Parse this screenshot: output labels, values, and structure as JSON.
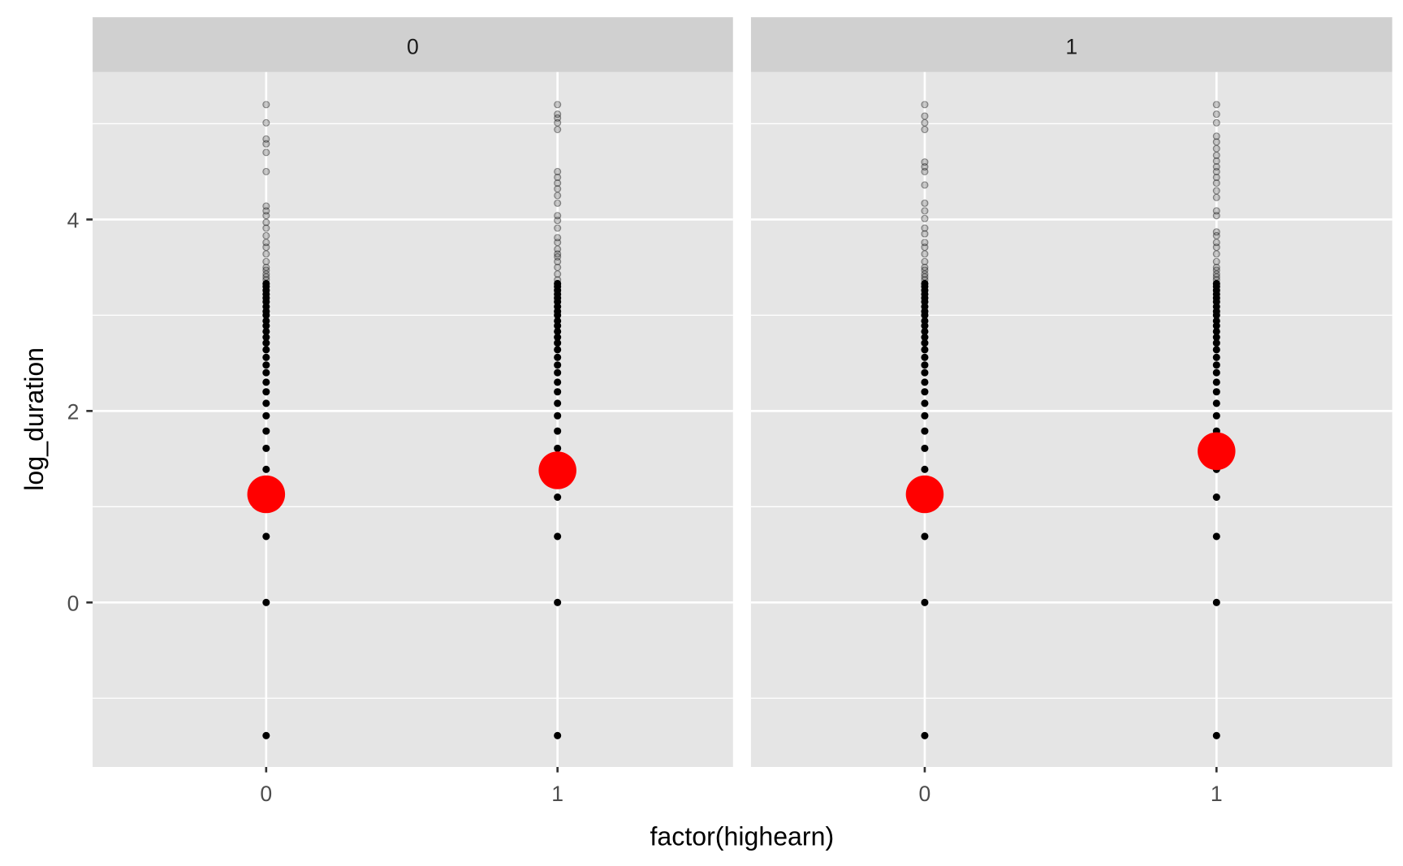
{
  "chart_data": {
    "type": "scatter",
    "title": "",
    "xlabel": "factor(highearn)",
    "ylabel": "log_duration",
    "ylim": [
      -1.75,
      5.45
    ],
    "y_ticks": [
      0,
      2,
      4
    ],
    "y_tick_labels": [
      "0",
      "2",
      "4"
    ],
    "x_categories": [
      "0",
      "1"
    ],
    "grid": true,
    "facets": [
      {
        "strip_label": "0",
        "groups": [
          {
            "x": "0",
            "mean": 1.13,
            "values": [
              -1.39,
              0,
              0.69,
              1.1,
              1.39,
              1.61,
              1.79,
              1.95,
              2.08,
              2.2,
              2.3,
              2.4,
              2.48,
              2.56,
              2.64,
              2.71,
              2.77,
              2.83,
              2.89,
              2.94,
              3.0,
              3.04,
              3.09,
              3.14,
              3.18,
              3.22,
              3.26,
              3.3,
              3.33,
              3.37,
              3.4,
              3.43,
              3.47,
              3.5,
              3.56,
              3.64,
              3.71,
              3.76,
              3.83,
              3.91,
              3.97,
              4.04,
              4.09,
              4.14,
              4.5,
              4.7,
              4.79,
              4.84,
              5.01,
              5.2
            ]
          },
          {
            "x": "1",
            "mean": 1.38,
            "values": [
              -1.39,
              0,
              0.69,
              1.1,
              1.39,
              1.61,
              1.79,
              1.95,
              2.08,
              2.2,
              2.3,
              2.4,
              2.48,
              2.56,
              2.64,
              2.71,
              2.77,
              2.83,
              2.89,
              2.94,
              3.0,
              3.04,
              3.09,
              3.14,
              3.18,
              3.22,
              3.26,
              3.3,
              3.33,
              3.37,
              3.43,
              3.5,
              3.56,
              3.61,
              3.64,
              3.69,
              3.76,
              3.81,
              3.91,
              3.99,
              4.04,
              4.17,
              4.25,
              4.32,
              4.38,
              4.44,
              4.5,
              4.94,
              5.01,
              5.06,
              5.1,
              5.2
            ]
          }
        ]
      },
      {
        "strip_label": "1",
        "groups": [
          {
            "x": "0",
            "mean": 1.13,
            "values": [
              -1.39,
              0,
              0.69,
              1.1,
              1.39,
              1.61,
              1.79,
              1.95,
              2.08,
              2.2,
              2.3,
              2.4,
              2.48,
              2.56,
              2.64,
              2.71,
              2.77,
              2.83,
              2.89,
              2.94,
              3.0,
              3.04,
              3.09,
              3.14,
              3.18,
              3.22,
              3.26,
              3.3,
              3.33,
              3.37,
              3.4,
              3.43,
              3.47,
              3.5,
              3.56,
              3.64,
              3.71,
              3.76,
              3.85,
              3.91,
              4.01,
              4.09,
              4.17,
              4.36,
              4.5,
              4.55,
              4.6,
              4.94,
              5.01,
              5.08,
              5.2
            ]
          },
          {
            "x": "1",
            "mean": 1.58,
            "values": [
              -1.39,
              0,
              0.69,
              1.1,
              1.39,
              1.61,
              1.79,
              1.95,
              2.08,
              2.2,
              2.3,
              2.4,
              2.48,
              2.56,
              2.64,
              2.71,
              2.77,
              2.83,
              2.89,
              2.94,
              3.0,
              3.04,
              3.09,
              3.14,
              3.18,
              3.22,
              3.26,
              3.3,
              3.33,
              3.37,
              3.4,
              3.43,
              3.47,
              3.5,
              3.56,
              3.64,
              3.71,
              3.76,
              3.83,
              3.87,
              4.04,
              4.09,
              4.23,
              4.3,
              4.38,
              4.44,
              4.5,
              4.55,
              4.61,
              4.67,
              4.74,
              4.81,
              4.87,
              5.01,
              5.1,
              5.2
            ]
          }
        ]
      }
    ],
    "colors": {
      "panel": "#e5e5e5",
      "strip": "#d0d0d0",
      "grid": "#ffffff",
      "point": "#000000",
      "mean": "#ff0000"
    }
  }
}
